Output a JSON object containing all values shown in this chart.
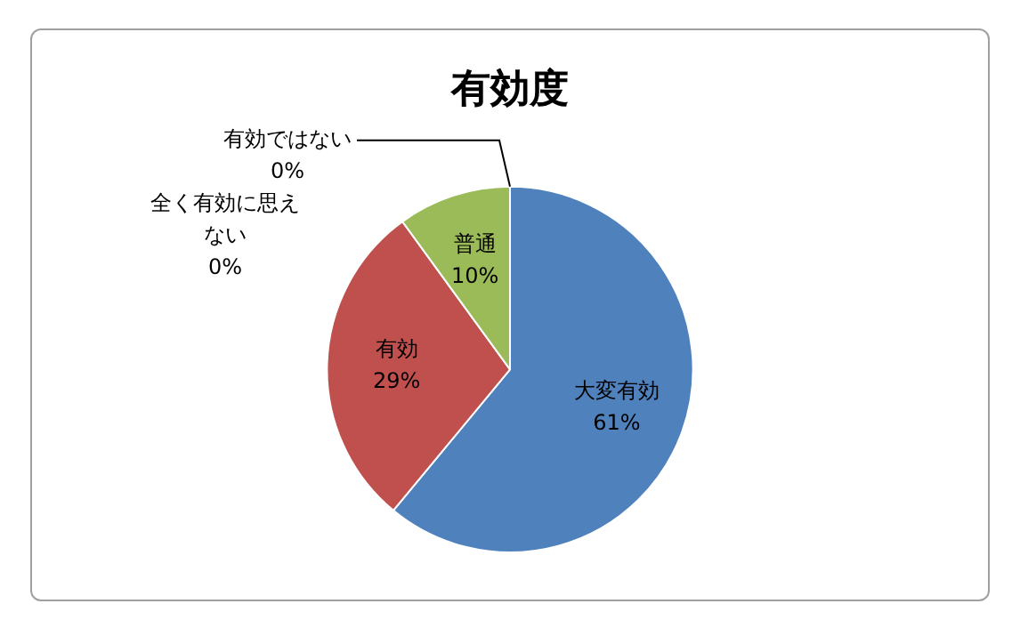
{
  "chart_data": {
    "type": "pie",
    "title": "有効度",
    "categories": [
      "大変有効",
      "有効",
      "普通",
      "全く有効に思えない",
      "有効ではない"
    ],
    "values": [
      61,
      29,
      10,
      0,
      0
    ],
    "colors": [
      "#4f81bd",
      "#c0504d",
      "#9bbb59",
      "#8064a2",
      "#4bacc6"
    ],
    "value_labels": [
      "61%",
      "29%",
      "10%",
      "0%",
      "0%"
    ],
    "legend": false
  }
}
